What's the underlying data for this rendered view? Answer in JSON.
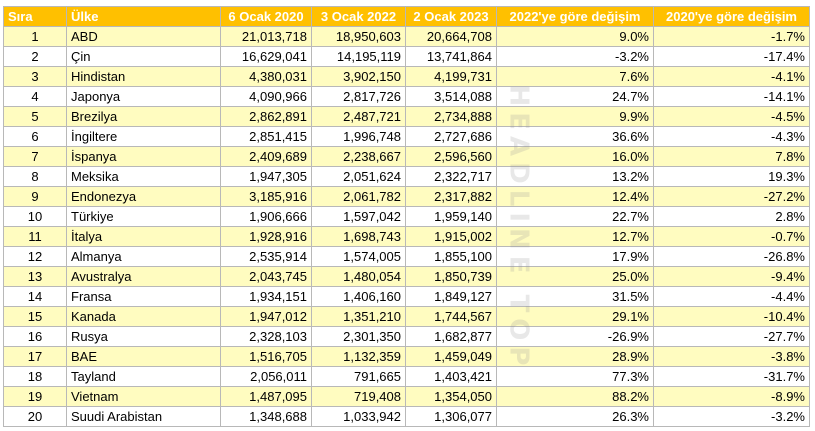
{
  "watermark": "HEADLINE TOP",
  "headers": [
    "Sıra",
    "Ülke",
    "6 Ocak 2020",
    "3 Ocak 2022",
    "2 Ocak 2023",
    "2022'ye göre değişim",
    "2020'ye göre değişim"
  ],
  "rows": [
    [
      "1",
      "ABD",
      "21,013,718",
      "18,950,603",
      "20,664,708",
      "9.0%",
      "-1.7%"
    ],
    [
      "2",
      "Çin",
      "16,629,041",
      "14,195,119",
      "13,741,864",
      "-3.2%",
      "-17.4%"
    ],
    [
      "3",
      "Hindistan",
      "4,380,031",
      "3,902,150",
      "4,199,731",
      "7.6%",
      "-4.1%"
    ],
    [
      "4",
      "Japonya",
      "4,090,966",
      "2,817,726",
      "3,514,088",
      "24.7%",
      "-14.1%"
    ],
    [
      "5",
      "Brezilya",
      "2,862,891",
      "2,487,721",
      "2,734,888",
      "9.9%",
      "-4.5%"
    ],
    [
      "6",
      "İngiltere",
      "2,851,415",
      "1,996,748",
      "2,727,686",
      "36.6%",
      "-4.3%"
    ],
    [
      "7",
      "İspanya",
      "2,409,689",
      "2,238,667",
      "2,596,560",
      "16.0%",
      "7.8%"
    ],
    [
      "8",
      "Meksika",
      "1,947,305",
      "2,051,624",
      "2,322,717",
      "13.2%",
      "19.3%"
    ],
    [
      "9",
      "Endonezya",
      "3,185,916",
      "2,061,782",
      "2,317,882",
      "12.4%",
      "-27.2%"
    ],
    [
      "10",
      "Türkiye",
      "1,906,666",
      "1,597,042",
      "1,959,140",
      "22.7%",
      "2.8%"
    ],
    [
      "11",
      "İtalya",
      "1,928,916",
      "1,698,743",
      "1,915,002",
      "12.7%",
      "-0.7%"
    ],
    [
      "12",
      "Almanya",
      "2,535,914",
      "1,574,005",
      "1,855,100",
      "17.9%",
      "-26.8%"
    ],
    [
      "13",
      "Avustralya",
      "2,043,745",
      "1,480,054",
      "1,850,739",
      "25.0%",
      "-9.4%"
    ],
    [
      "14",
      "Fransa",
      "1,934,151",
      "1,406,160",
      "1,849,127",
      "31.5%",
      "-4.4%"
    ],
    [
      "15",
      "Kanada",
      "1,947,012",
      "1,351,210",
      "1,744,567",
      "29.1%",
      "-10.4%"
    ],
    [
      "16",
      "Rusya",
      "2,328,103",
      "2,301,350",
      "1,682,877",
      "-26.9%",
      "-27.7%"
    ],
    [
      "17",
      "BAE",
      "1,516,705",
      "1,132,359",
      "1,459,049",
      "28.9%",
      "-3.8%"
    ],
    [
      "18",
      "Tayland",
      "2,056,011",
      "791,665",
      "1,403,421",
      "77.3%",
      "-31.7%"
    ],
    [
      "19",
      "Vietnam",
      "1,487,095",
      "719,408",
      "1,354,050",
      "88.2%",
      "-8.9%"
    ],
    [
      "20",
      "Suudi Arabistan",
      "1,348,688",
      "1,033,942",
      "1,306,077",
      "26.3%",
      "-3.2%"
    ]
  ]
}
